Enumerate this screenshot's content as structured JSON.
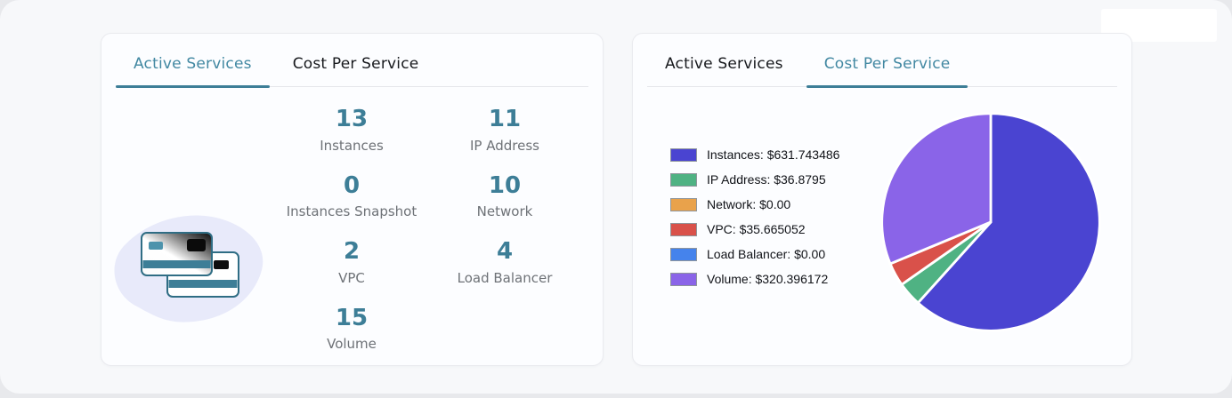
{
  "colors": {
    "accent_teal": "#3d7e97",
    "tab_active": "#4288a2",
    "tab_inactive": "#17191d",
    "label_gray": "#6e7277",
    "page_bg": "#f7f8fa",
    "card_bg": "#fcfdff"
  },
  "left_card": {
    "tabs": [
      {
        "label": "Active Services",
        "active": true
      },
      {
        "label": "Cost Per Service",
        "active": false
      }
    ],
    "stats": [
      {
        "value": "13",
        "label": "Instances"
      },
      {
        "value": "11",
        "label": "IP Address"
      },
      {
        "value": "0",
        "label": "Instances Snapshot"
      },
      {
        "value": "10",
        "label": "Network"
      },
      {
        "value": "2",
        "label": "VPC"
      },
      {
        "value": "4",
        "label": "Load Balancer"
      },
      {
        "value": "15",
        "label": "Volume"
      }
    ],
    "illustration": "credit-cards"
  },
  "right_card": {
    "tabs": [
      {
        "label": "Active Services",
        "active": false
      },
      {
        "label": "Cost Per Service",
        "active": true
      }
    ]
  },
  "chart_data": {
    "type": "pie",
    "title": "Cost Per Service",
    "labels": [
      "Instances",
      "IP Address",
      "Network",
      "VPC",
      "Load Balancer",
      "Volume"
    ],
    "values": [
      631.743486,
      36.8795,
      0,
      35.665052,
      0,
      320.396172
    ],
    "legend_entries": [
      "Instances: $631.743486",
      "IP Address: $36.8795",
      "Network: $0.00",
      "VPC: $35.665052",
      "Load Balancer: $0.00",
      "Volume: $320.396172"
    ],
    "colors": [
      "#4a44d1",
      "#4fb283",
      "#e9a24b",
      "#d9514a",
      "#4583ec",
      "#8a64e8"
    ],
    "legend_position": "left",
    "start_angle_deg": -90,
    "direction": "clockwise",
    "slice_border_color": "#ffffff"
  }
}
